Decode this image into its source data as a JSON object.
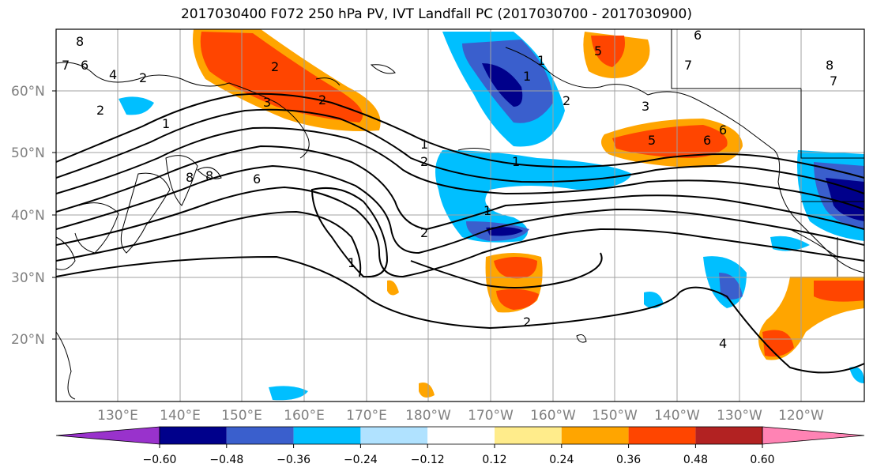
{
  "title": "2017030400 F072 250 hPa PV, IVT Landfall PC (2017030700 - 2017030900)",
  "map": {
    "lat_labels": [
      "60°N",
      "50°N",
      "40°N",
      "30°N",
      "20°N"
    ],
    "lon_labels": [
      "130°E",
      "140°E",
      "150°E",
      "160°E",
      "170°E",
      "180°W",
      "170°W",
      "160°W",
      "150°W",
      "140°W",
      "130°W",
      "120°W"
    ],
    "contour_labels": [
      "8",
      "7",
      "6",
      "4",
      "2",
      "8",
      "2",
      "1",
      "2",
      "3",
      "2",
      "1",
      "2",
      "2",
      "1",
      "5",
      "6",
      "1",
      "6",
      "2",
      "4",
      "1",
      "1",
      "2",
      "5",
      "3",
      "6",
      "7",
      "8",
      "6",
      "7",
      "8",
      "1"
    ]
  },
  "colorbar": {
    "colors": [
      "#9932cc",
      "#00008b",
      "#3a5fcd",
      "#00bfff",
      "#b0e2ff",
      "#ffffff",
      "#ffec8b",
      "#ffa500",
      "#ff4500",
      "#b22222",
      "#ff83b4"
    ],
    "tick_labels": [
      "−0.60",
      "−0.48",
      "−0.36",
      "−0.24",
      "−0.12",
      "0.12",
      "0.24",
      "0.36",
      "0.48",
      "0.60"
    ]
  }
}
